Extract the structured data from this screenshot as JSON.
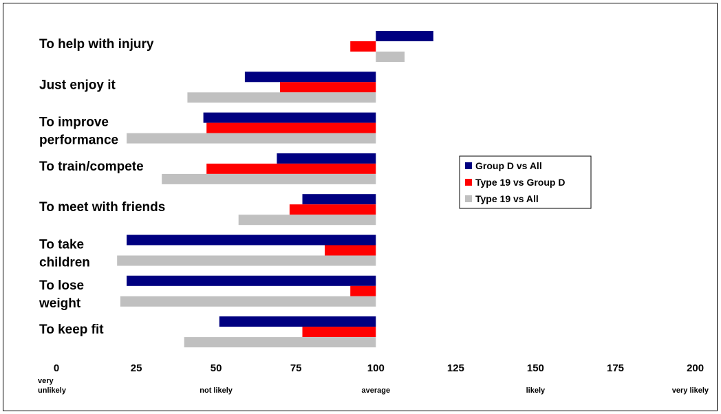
{
  "chart_data": {
    "type": "bar",
    "orientation": "horizontal",
    "categories": [
      [
        "To help with injury"
      ],
      [
        "Just enjoy it"
      ],
      [
        "To improve",
        "performance"
      ],
      [
        "To train/compete"
      ],
      [
        "To meet with friends"
      ],
      [
        "To take",
        "children"
      ],
      [
        "To lose",
        "weight"
      ],
      [
        "To keep fit"
      ]
    ],
    "baseline": 100,
    "series": [
      {
        "name": "Group D vs All",
        "color": "#000080",
        "values": [
          118,
          59,
          46,
          69,
          77,
          22,
          22,
          51
        ]
      },
      {
        "name": "Type 19 vs Group D",
        "color": "#ff0000",
        "values": [
          92,
          70,
          47,
          47,
          73,
          84,
          92,
          77
        ]
      },
      {
        "name": "Type 19 vs All",
        "color": "#c0c0c0",
        "values": [
          109,
          41,
          22,
          33,
          57,
          19,
          20,
          40
        ]
      }
    ],
    "x_ticks": [
      0,
      25,
      50,
      75,
      100,
      125,
      150,
      175,
      200
    ],
    "x_descriptors": [
      {
        "at": 0,
        "lines": [
          "very",
          "unlikely"
        ]
      },
      {
        "at": 50,
        "lines": [
          "not likely"
        ]
      },
      {
        "at": 100,
        "lines": [
          "average"
        ]
      },
      {
        "at": 150,
        "lines": [
          "likely"
        ]
      },
      {
        "at": 200,
        "lines": [
          "very likely"
        ]
      }
    ],
    "xlim": [
      0,
      200
    ],
    "title": "",
    "xlabel": "",
    "ylabel": "",
    "grid": false,
    "legend": "right"
  }
}
